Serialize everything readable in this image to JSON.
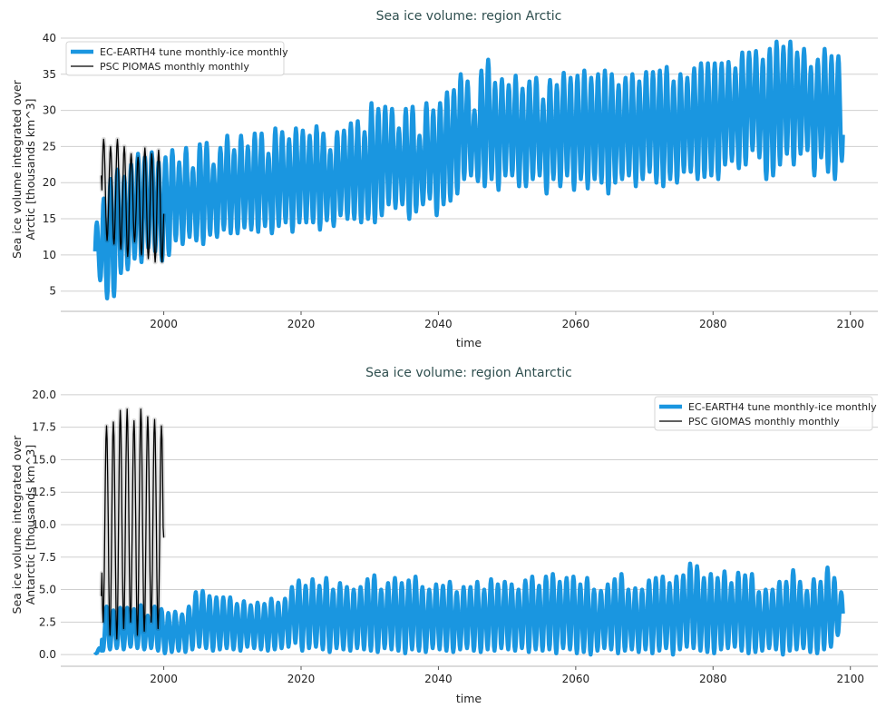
{
  "chart_data": [
    {
      "type": "line",
      "title": "Sea ice volume: region Arctic",
      "xlabel": "time",
      "ylabel": [
        "Sea ice volume integrated over",
        "Arctic [thousands km^3]"
      ],
      "xlim": [
        1985,
        2104
      ],
      "ylim": [
        2.2,
        41.5
      ],
      "xticks": [
        2000,
        2020,
        2040,
        2060,
        2080,
        2100
      ],
      "yticks": [
        5,
        10,
        15,
        20,
        25,
        30,
        35,
        40
      ],
      "ytick_labels": [
        "5",
        "10",
        "15",
        "20",
        "25",
        "30",
        "35",
        "40"
      ],
      "grid": "horizontal",
      "legend_position": "top-left",
      "seasonal_peak_month": 3,
      "series": [
        {
          "name": "EC-EARTH4 tune monthly-ice monthly",
          "color": "#1a96e0",
          "start_year": 1990,
          "annual_max": [
            14.5,
            17.8,
            20.5,
            21.8,
            20.8,
            22.5,
            24,
            23.5,
            24.2,
            22.8,
            23.5,
            24.5,
            22.8,
            24.8,
            22,
            25.3,
            25.5,
            22.5,
            24.8,
            26.5,
            24.5,
            26.5,
            25,
            26.8,
            26.8,
            24,
            27.5,
            27,
            26,
            27.5,
            27.2,
            26.5,
            27.8,
            26.8,
            24.5,
            27,
            27.2,
            28.2,
            28.5,
            27,
            31,
            30.2,
            30.5,
            30.2,
            27.5,
            30.2,
            30.5,
            26.5,
            31,
            30,
            31,
            32.5,
            32.8,
            35,
            34,
            30,
            35.5,
            37,
            33.8,
            34.3,
            33.5,
            34.8,
            33,
            34,
            34.5,
            31.5,
            34.2,
            33.5,
            35.2,
            34.5,
            34.8,
            35.5,
            34.5,
            35,
            35.5,
            35,
            33.5,
            34.5,
            35,
            34,
            35.3,
            35.3,
            35.5,
            36,
            34,
            35,
            34.5,
            35.8,
            36.5,
            36.5,
            36.5,
            36.5,
            36.7,
            35.8,
            38,
            38,
            38.2,
            37,
            38.5,
            39.5,
            38.8,
            39.5,
            38,
            38.5,
            36,
            37,
            38.5,
            37.5,
            37.5
          ],
          "annual_min": [
            6.5,
            4,
            4.3,
            7.5,
            8,
            9.5,
            9,
            11,
            10.5,
            9.2,
            10,
            12,
            11.5,
            12.5,
            12,
            11.5,
            12.8,
            12.5,
            13.5,
            13,
            13,
            13.8,
            13.5,
            13.2,
            14,
            13,
            14,
            14.5,
            13.2,
            14.5,
            14.5,
            14.5,
            13.5,
            14.8,
            14,
            15.5,
            15,
            15,
            14.5,
            15,
            14.5,
            15.5,
            17,
            16.5,
            17,
            15,
            16,
            17,
            17.8,
            15.5,
            17,
            17.5,
            18.5,
            20.5,
            21,
            20.2,
            19.5,
            20.5,
            19,
            21,
            21,
            19.5,
            19.5,
            20.5,
            21,
            18.5,
            20.5,
            19.5,
            21,
            19,
            20.5,
            19.2,
            20.5,
            20,
            18.5,
            20,
            20.5,
            21,
            19.5,
            20.5,
            21.5,
            20,
            19.5,
            20.5,
            20,
            21.5,
            21.5,
            20.5,
            20.8,
            21,
            20.5,
            22.5,
            23,
            22,
            22.5,
            24.5,
            23.5,
            20.5,
            21,
            22.5,
            24,
            22.5,
            24,
            24.5,
            21,
            23.5,
            21.5,
            20.5,
            23
          ]
        },
        {
          "name": "PSC PIOMAS monthly monthly",
          "color": "#000000",
          "start_year": 1991,
          "annual_max": [
            26,
            25,
            26,
            25,
            24,
            23.5,
            24.8,
            24,
            24.5
          ],
          "annual_min": [
            12,
            11.5,
            10.8,
            9.8,
            11.8,
            10,
            9.5,
            9,
            9
          ],
          "first_value": 21,
          "last_value": 15.7
        }
      ]
    },
    {
      "type": "line",
      "title": "Sea ice volume: region Antarctic",
      "xlabel": "time",
      "ylabel": [
        "Sea ice volume integrated over",
        "Antarctic [thousands km^3]"
      ],
      "xlim": [
        1985,
        2104
      ],
      "ylim": [
        -0.9,
        20.9
      ],
      "xticks": [
        2000,
        2020,
        2040,
        2060,
        2080,
        2100
      ],
      "yticks": [
        0,
        2.5,
        5,
        7.5,
        10,
        12.5,
        15,
        17.5,
        20
      ],
      "ytick_labels": [
        "0.0",
        "2.5",
        "5.0",
        "7.5",
        "10.0",
        "12.5",
        "15.0",
        "17.5",
        "20.0"
      ],
      "grid": "horizontal",
      "legend_position": "top-right",
      "seasonal_peak_month": 8,
      "series": [
        {
          "name": "EC-EARTH4 tune monthly-ice monthly",
          "color": "#1a96e0",
          "start_year": 1990,
          "annual_max": [
            0.5,
            3.7,
            3.4,
            3.6,
            3.6,
            3.5,
            3.8,
            3.0,
            3.7,
            3.5,
            3.2,
            3.3,
            3.1,
            3.7,
            4.8,
            4.9,
            4.5,
            4.4,
            4.4,
            4.4,
            3.9,
            4.1,
            3.8,
            4.0,
            3.9,
            4.3,
            4.0,
            4.3,
            5.2,
            5.7,
            5.3,
            5.8,
            5.3,
            5.9,
            5.0,
            5.5,
            5.2,
            5.0,
            5.2,
            5.8,
            6.1,
            5.0,
            5.5,
            5.9,
            5.5,
            5.7,
            6.0,
            5.2,
            5.0,
            5.4,
            5.3,
            5.6,
            4.8,
            5.2,
            5.2,
            5.6,
            5.0,
            5.8,
            5.4,
            5.6,
            5.4,
            5.0,
            5.7,
            6.0,
            5.3,
            6.0,
            6.2,
            5.6,
            5.9,
            6.0,
            5.4,
            5.9,
            5.0,
            4.9,
            5.4,
            5.8,
            6.2,
            5.0,
            5.1,
            5.0,
            5.7,
            5.9,
            6.0,
            5.5,
            6.0,
            6.1,
            7.0,
            6.8,
            5.9,
            6.2,
            5.9,
            6.4,
            5.5,
            6.3,
            6.1,
            6.2,
            4.8,
            5.0,
            5.0,
            5.6,
            5.6,
            6.5,
            5.6,
            4.9,
            5.8,
            5.6,
            6.7,
            5.9,
            4.8
          ],
          "annual_min": [
            0.1,
            0.3,
            0.4,
            0.5,
            0.4,
            0.6,
            0.5,
            0.4,
            0.5,
            0.3,
            0.1,
            0.2,
            0.3,
            0.2,
            0.4,
            0.6,
            0.5,
            0.3,
            0.4,
            0.5,
            0.4,
            0.3,
            0.6,
            0.5,
            0.4,
            0.3,
            0.4,
            0.5,
            0.6,
            0.9,
            0.3,
            0.5,
            0.6,
            0.4,
            0.2,
            0.5,
            0.4,
            0.3,
            0.5,
            0.4,
            0.3,
            0.2,
            0.5,
            0.4,
            0.3,
            0.1,
            0.4,
            0.3,
            0.2,
            0.5,
            0.4,
            0.3,
            0.2,
            0.4,
            0.5,
            0.3,
            0.2,
            0.4,
            0.3,
            0.5,
            0.4,
            0.3,
            0.5,
            0.2,
            0.4,
            0.3,
            0.4,
            0.1,
            0.5,
            0.4,
            0.1,
            0.2,
            0.0,
            0.3,
            0.5,
            0.4,
            0.1,
            0.3,
            0.4,
            0.2,
            0.4,
            0.1,
            0.3,
            0.5,
            0.0,
            0.4,
            0.6,
            0.5,
            0.3,
            0.2,
            0.1,
            0.4,
            0.5,
            0.6,
            0.3,
            0.1,
            0.2,
            0.3,
            0.5,
            0.4,
            0.0,
            0.3,
            0.4,
            0.5,
            0.2,
            0.1,
            0.4,
            0.6,
            1.5
          ]
        },
        {
          "name": "PSC GIOMAS monthly monthly",
          "color": "#000000",
          "start_year": 1991,
          "annual_max": [
            17.6,
            17.9,
            18.8,
            18.9,
            18.0,
            18.9,
            18.3,
            18.1,
            17.6
          ],
          "annual_min": [
            2.5,
            1.5,
            1.2,
            2.0,
            2.5,
            1.5,
            1.8,
            2.5,
            2.0
          ],
          "first_value": 4.5,
          "last_value": 9.0
        }
      ]
    }
  ]
}
